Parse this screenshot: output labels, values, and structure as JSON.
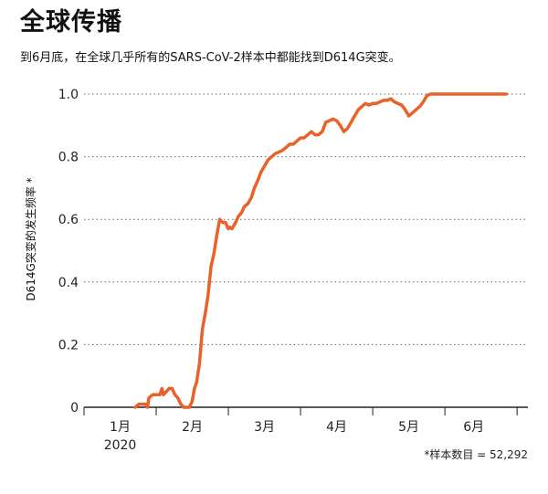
{
  "title": "全球传播",
  "subtitle": "到6月底，在全球几乎所有的SARS-CoV-2样本中都能找到D614G突变。",
  "footnote": "*样本数目 = 52,292",
  "chart_data": {
    "type": "line",
    "title": "全球传播",
    "ylabel": "D614G突变的发生频率 *",
    "xlabel": "",
    "ylim": [
      0,
      1.0
    ],
    "yticks": [
      0,
      0.2,
      0.4,
      0.6,
      0.8,
      1.0
    ],
    "ytick_labels": [
      "0",
      "0.2",
      "0.4",
      "0.6",
      "0.8",
      "1.0"
    ],
    "xlim": [
      0,
      6.15
    ],
    "xticks": [
      0,
      1,
      2,
      3,
      4,
      5,
      6
    ],
    "month_labels": [
      {
        "x": 0.5,
        "label": "1月"
      },
      {
        "x": 1.5,
        "label": "2月"
      },
      {
        "x": 2.5,
        "label": "3月"
      },
      {
        "x": 3.5,
        "label": "4月"
      },
      {
        "x": 4.5,
        "label": "5月"
      },
      {
        "x": 5.4,
        "label": "6月"
      }
    ],
    "year_label": "2020",
    "grid": "horizontal dotted",
    "line_color": "#e8622a",
    "series": [
      {
        "name": "",
        "x": [
          0.71,
          0.76,
          0.85,
          0.88,
          0.9,
          0.95,
          1.0,
          1.05,
          1.08,
          1.1,
          1.14,
          1.18,
          1.22,
          1.26,
          1.3,
          1.34,
          1.38,
          1.42,
          1.46,
          1.5,
          1.53,
          1.56,
          1.6,
          1.64,
          1.68,
          1.72,
          1.76,
          1.8,
          1.84,
          1.88,
          1.92,
          1.96,
          2.0,
          2.02,
          2.05,
          2.1,
          2.14,
          2.18,
          2.22,
          2.27,
          2.32,
          2.36,
          2.4,
          2.45,
          2.5,
          2.55,
          2.6,
          2.65,
          2.7,
          2.75,
          2.8,
          2.85,
          2.9,
          2.95,
          3.0,
          3.05,
          3.1,
          3.15,
          3.2,
          3.25,
          3.3,
          3.35,
          3.4,
          3.45,
          3.5,
          3.55,
          3.6,
          3.65,
          3.7,
          3.75,
          3.8,
          3.85,
          3.9,
          3.95,
          4.0,
          4.05,
          4.1,
          4.15,
          4.2,
          4.25,
          4.3,
          4.35,
          4.4,
          4.45,
          4.5,
          4.55,
          4.6,
          4.65,
          4.7,
          4.75,
          4.8,
          4.85,
          4.9,
          4.95,
          5.0,
          5.05,
          5.1,
          5.15,
          5.2,
          5.25,
          5.3,
          5.35,
          5.4,
          5.45,
          5.5,
          5.55,
          5.6,
          5.65,
          5.7,
          5.75,
          5.8,
          5.85
        ],
        "y": [
          0.0,
          0.01,
          0.01,
          0.0,
          0.03,
          0.04,
          0.04,
          0.04,
          0.06,
          0.04,
          0.05,
          0.06,
          0.06,
          0.04,
          0.03,
          0.01,
          0.0,
          0.0,
          0.0,
          0.02,
          0.06,
          0.08,
          0.14,
          0.25,
          0.3,
          0.36,
          0.45,
          0.49,
          0.55,
          0.6,
          0.59,
          0.59,
          0.57,
          0.575,
          0.57,
          0.59,
          0.61,
          0.62,
          0.64,
          0.65,
          0.67,
          0.7,
          0.72,
          0.75,
          0.77,
          0.79,
          0.8,
          0.81,
          0.815,
          0.82,
          0.83,
          0.84,
          0.84,
          0.85,
          0.86,
          0.86,
          0.87,
          0.88,
          0.87,
          0.87,
          0.88,
          0.91,
          0.915,
          0.92,
          0.915,
          0.9,
          0.88,
          0.89,
          0.91,
          0.93,
          0.95,
          0.96,
          0.97,
          0.965,
          0.97,
          0.97,
          0.975,
          0.98,
          0.98,
          0.985,
          0.975,
          0.97,
          0.965,
          0.95,
          0.93,
          0.94,
          0.95,
          0.96,
          0.975,
          0.995,
          1.0,
          1.0,
          1.0,
          1.0,
          1.0,
          1.0,
          1.0,
          1.0,
          1.0,
          1.0,
          1.0,
          1.0,
          1.0,
          1.0,
          1.0,
          1.0,
          1.0,
          1.0,
          1.0,
          1.0,
          1.0,
          1.0
        ]
      }
    ]
  }
}
